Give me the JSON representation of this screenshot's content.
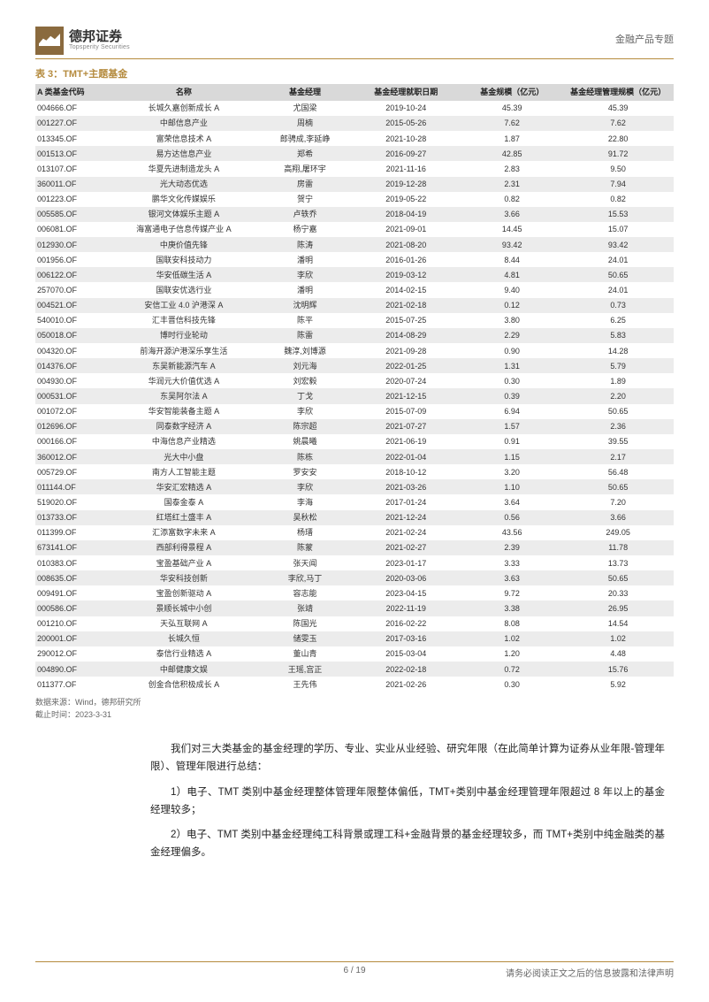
{
  "header": {
    "logo_title": "德邦证券",
    "logo_sub": "Topsperity Securities",
    "right": "金融产品专题"
  },
  "table": {
    "title": "表 3：TMT+主题基金",
    "columns": [
      "A 类基金代码",
      "名称",
      "基金经理",
      "基金经理就职日期",
      "基金规模（亿元）",
      "基金经理管理规模（亿元）"
    ],
    "rows": [
      [
        "004666.OF",
        "长城久嘉创新成长 A",
        "尤国梁",
        "2019-10-24",
        "45.39",
        "45.39"
      ],
      [
        "001227.OF",
        "中邮信息产业",
        "周楠",
        "2015-05-26",
        "7.62",
        "7.62"
      ],
      [
        "013345.OF",
        "富荣信息技术 A",
        "郎骋成,李延峥",
        "2021-10-28",
        "1.87",
        "22.80"
      ],
      [
        "001513.OF",
        "易方达信息产业",
        "郑希",
        "2016-09-27",
        "42.85",
        "91.72"
      ],
      [
        "013107.OF",
        "华夏先进制造龙头 A",
        "高翔,屠环宇",
        "2021-11-16",
        "2.83",
        "9.50"
      ],
      [
        "360011.OF",
        "光大动态优选",
        "房雷",
        "2019-12-28",
        "2.31",
        "7.94"
      ],
      [
        "001223.OF",
        "鹏华文化传媒娱乐",
        "贺宁",
        "2019-05-22",
        "0.82",
        "0.82"
      ],
      [
        "005585.OF",
        "银河文体娱乐主题 A",
        "卢轶乔",
        "2018-04-19",
        "3.66",
        "15.53"
      ],
      [
        "006081.OF",
        "海富通电子信息传媒产业 A",
        "杨宁嘉",
        "2021-09-01",
        "14.45",
        "15.07"
      ],
      [
        "012930.OF",
        "中庚价值先锋",
        "陈涛",
        "2021-08-20",
        "93.42",
        "93.42"
      ],
      [
        "001956.OF",
        "国联安科技动力",
        "潘明",
        "2016-01-26",
        "8.44",
        "24.01"
      ],
      [
        "006122.OF",
        "华安低碳生活 A",
        "李欣",
        "2019-03-12",
        "4.81",
        "50.65"
      ],
      [
        "257070.OF",
        "国联安优选行业",
        "潘明",
        "2014-02-15",
        "9.40",
        "24.01"
      ],
      [
        "004521.OF",
        "安信工业 4.0 沪港深 A",
        "沈明辉",
        "2021-02-18",
        "0.12",
        "0.73"
      ],
      [
        "540010.OF",
        "汇丰晋信科技先锋",
        "陈平",
        "2015-07-25",
        "3.80",
        "6.25"
      ],
      [
        "050018.OF",
        "博时行业轮动",
        "陈雷",
        "2014-08-29",
        "2.29",
        "5.83"
      ],
      [
        "004320.OF",
        "前海开源沪港深乐享生活",
        "魏淳,刘博源",
        "2021-09-28",
        "0.90",
        "14.28"
      ],
      [
        "014376.OF",
        "东吴新能源汽车 A",
        "刘元海",
        "2022-01-25",
        "1.31",
        "5.79"
      ],
      [
        "004930.OF",
        "华润元大价值优选 A",
        "刘宏毅",
        "2020-07-24",
        "0.30",
        "1.89"
      ],
      [
        "000531.OF",
        "东吴阿尔法 A",
        "丁戈",
        "2021-12-15",
        "0.39",
        "2.20"
      ],
      [
        "001072.OF",
        "华安智能装备主题 A",
        "李欣",
        "2015-07-09",
        "6.94",
        "50.65"
      ],
      [
        "012696.OF",
        "同泰数字经济 A",
        "陈宗超",
        "2021-07-27",
        "1.57",
        "2.36"
      ],
      [
        "000166.OF",
        "中海信息产业精选",
        "姚晨曦",
        "2021-06-19",
        "0.91",
        "39.55"
      ],
      [
        "360012.OF",
        "光大中小盘",
        "陈栋",
        "2022-01-04",
        "1.15",
        "2.17"
      ],
      [
        "005729.OF",
        "南方人工智能主题",
        "罗安安",
        "2018-10-12",
        "3.20",
        "56.48"
      ],
      [
        "011144.OF",
        "华安汇宏精选 A",
        "李欣",
        "2021-03-26",
        "1.10",
        "50.65"
      ],
      [
        "519020.OF",
        "国泰金泰 A",
        "李海",
        "2017-01-24",
        "3.64",
        "7.20"
      ],
      [
        "013733.OF",
        "红塔红土盛丰 A",
        "吴秋松",
        "2021-12-24",
        "0.56",
        "3.66"
      ],
      [
        "011399.OF",
        "汇添富数字未来 A",
        "杨瑨",
        "2021-02-24",
        "43.56",
        "249.05"
      ],
      [
        "673141.OF",
        "西部利得景程 A",
        "陈蒙",
        "2021-02-27",
        "2.39",
        "11.78"
      ],
      [
        "010383.OF",
        "宝盈基础产业 A",
        "张天闻",
        "2023-01-17",
        "3.33",
        "13.73"
      ],
      [
        "008635.OF",
        "华安科技创新",
        "李欣,马丁",
        "2020-03-06",
        "3.63",
        "50.65"
      ],
      [
        "009491.OF",
        "宝盈创新驱动 A",
        "容志能",
        "2023-04-15",
        "9.72",
        "20.33"
      ],
      [
        "000586.OF",
        "景顺长城中小创",
        "张靖",
        "2022-11-19",
        "3.38",
        "26.95"
      ],
      [
        "001210.OF",
        "天弘互联网 A",
        "陈国光",
        "2016-02-22",
        "8.08",
        "14.54"
      ],
      [
        "200001.OF",
        "长城久恒",
        "储雯玉",
        "2017-03-16",
        "1.02",
        "1.02"
      ],
      [
        "290012.OF",
        "泰信行业精选 A",
        "董山青",
        "2015-03-04",
        "1.20",
        "4.48"
      ],
      [
        "004890.OF",
        "中邮健康文娱",
        "王瑶,宫正",
        "2022-02-18",
        "0.72",
        "15.76"
      ],
      [
        "011377.OF",
        "创金合信积极成长 A",
        "王先伟",
        "2021-02-26",
        "0.30",
        "5.92"
      ]
    ]
  },
  "source": {
    "line1": "数据来源：Wind，德邦研究所",
    "line2": "截止时间：2023-3-31"
  },
  "body": {
    "intro": "我们对三大类基金的基金经理的学历、专业、实业从业经验、研究年限（在此简单计算为证券从业年限-管理年限）、管理年限进行总结：",
    "item1": "1）电子、TMT 类别中基金经理整体管理年限整体偏低，TMT+类别中基金经理管理年限超过 8 年以上的基金经理较多；",
    "item2": "2）电子、TMT 类别中基金经理纯工科背景或理工科+金融背景的基金经理较多，而 TMT+类别中纯金融类的基金经理偏多。"
  },
  "footer": {
    "page": "6 / 19",
    "disclaimer": "请务必阅读正文之后的信息披露和法律声明"
  },
  "colors": {
    "accent": "#b58b3e",
    "header_bg": "#d9d9d9",
    "row_alt": "#ececec"
  }
}
